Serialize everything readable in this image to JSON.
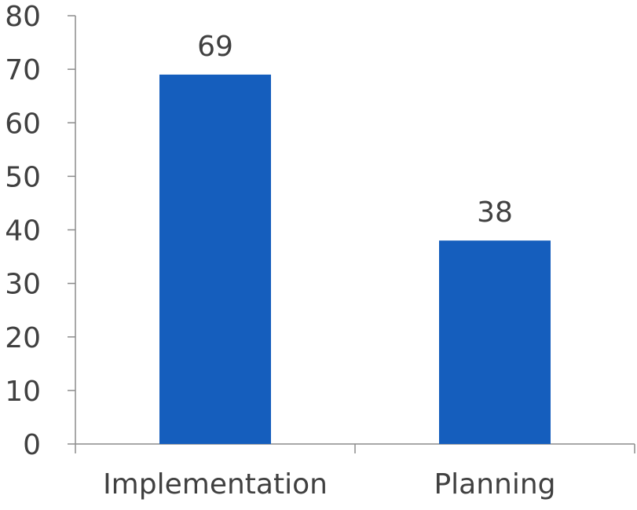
{
  "chart_data": {
    "type": "bar",
    "categories": [
      "Implementation",
      "Planning"
    ],
    "values": [
      69,
      38
    ],
    "data_labels": [
      "69",
      "38"
    ],
    "title": "",
    "xlabel": "",
    "ylabel": "",
    "ylim": [
      0,
      80
    ],
    "y_ticks": [
      0,
      10,
      20,
      30,
      40,
      50,
      60,
      70,
      80
    ],
    "y_tick_labels": [
      "0",
      "10",
      "20",
      "30",
      "40",
      "50",
      "60",
      "70",
      "80"
    ],
    "grid": false,
    "legend": "none",
    "bar_color": "#155EBD",
    "axis_color": "#8C8C8C",
    "text_color": "#404040"
  }
}
